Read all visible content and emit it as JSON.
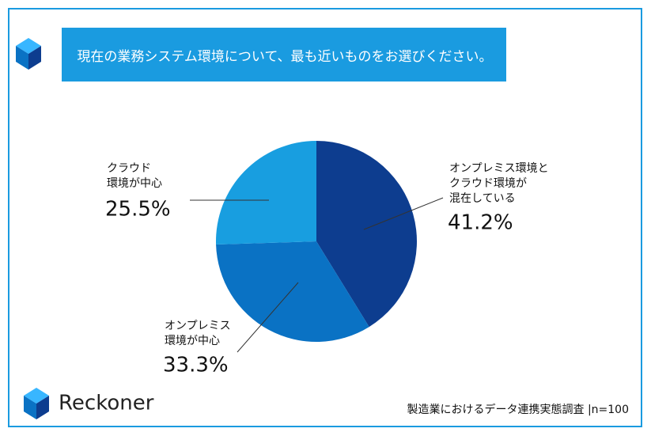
{
  "header": {
    "title": "現在の業務システム環境について、最も近いものをお選びください。"
  },
  "brand": "Reckoner",
  "footer": "製造業におけるデータ連携実態調査 |n=100",
  "chart_data": {
    "type": "pie",
    "categories": [
      [
        "オンプレミス環境と",
        "クラウド環境が",
        "混在している"
      ],
      [
        "オンプレミス",
        "環境が中心"
      ],
      [
        "クラウド",
        "環境が中心"
      ]
    ],
    "values": [
      41.2,
      33.3,
      25.5
    ],
    "value_labels": [
      "41.2%",
      "33.3%",
      "25.5%"
    ],
    "colors": [
      "#0d3d8f",
      "#0a72c4",
      "#189ee0"
    ]
  }
}
